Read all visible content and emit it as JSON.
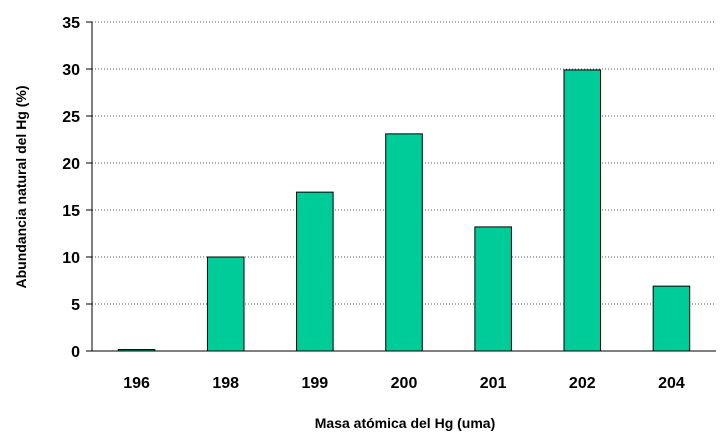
{
  "chart_data": {
    "type": "bar",
    "categories": [
      "196",
      "198",
      "199",
      "200",
      "201",
      "202",
      "204"
    ],
    "values": [
      0.15,
      10.0,
      16.9,
      23.1,
      13.2,
      29.9,
      6.9
    ],
    "xlabel": "Masa atómica del Hg (uma)",
    "ylabel": "Abundancia natural del Hg (%)",
    "ylim": [
      0,
      35
    ],
    "yticks": [
      0,
      5,
      10,
      15,
      20,
      25,
      30,
      35
    ],
    "grid": "horizontal-dotted",
    "legend": "none",
    "bar_color": "#00cc99",
    "bar_edge_color": "#000000"
  }
}
